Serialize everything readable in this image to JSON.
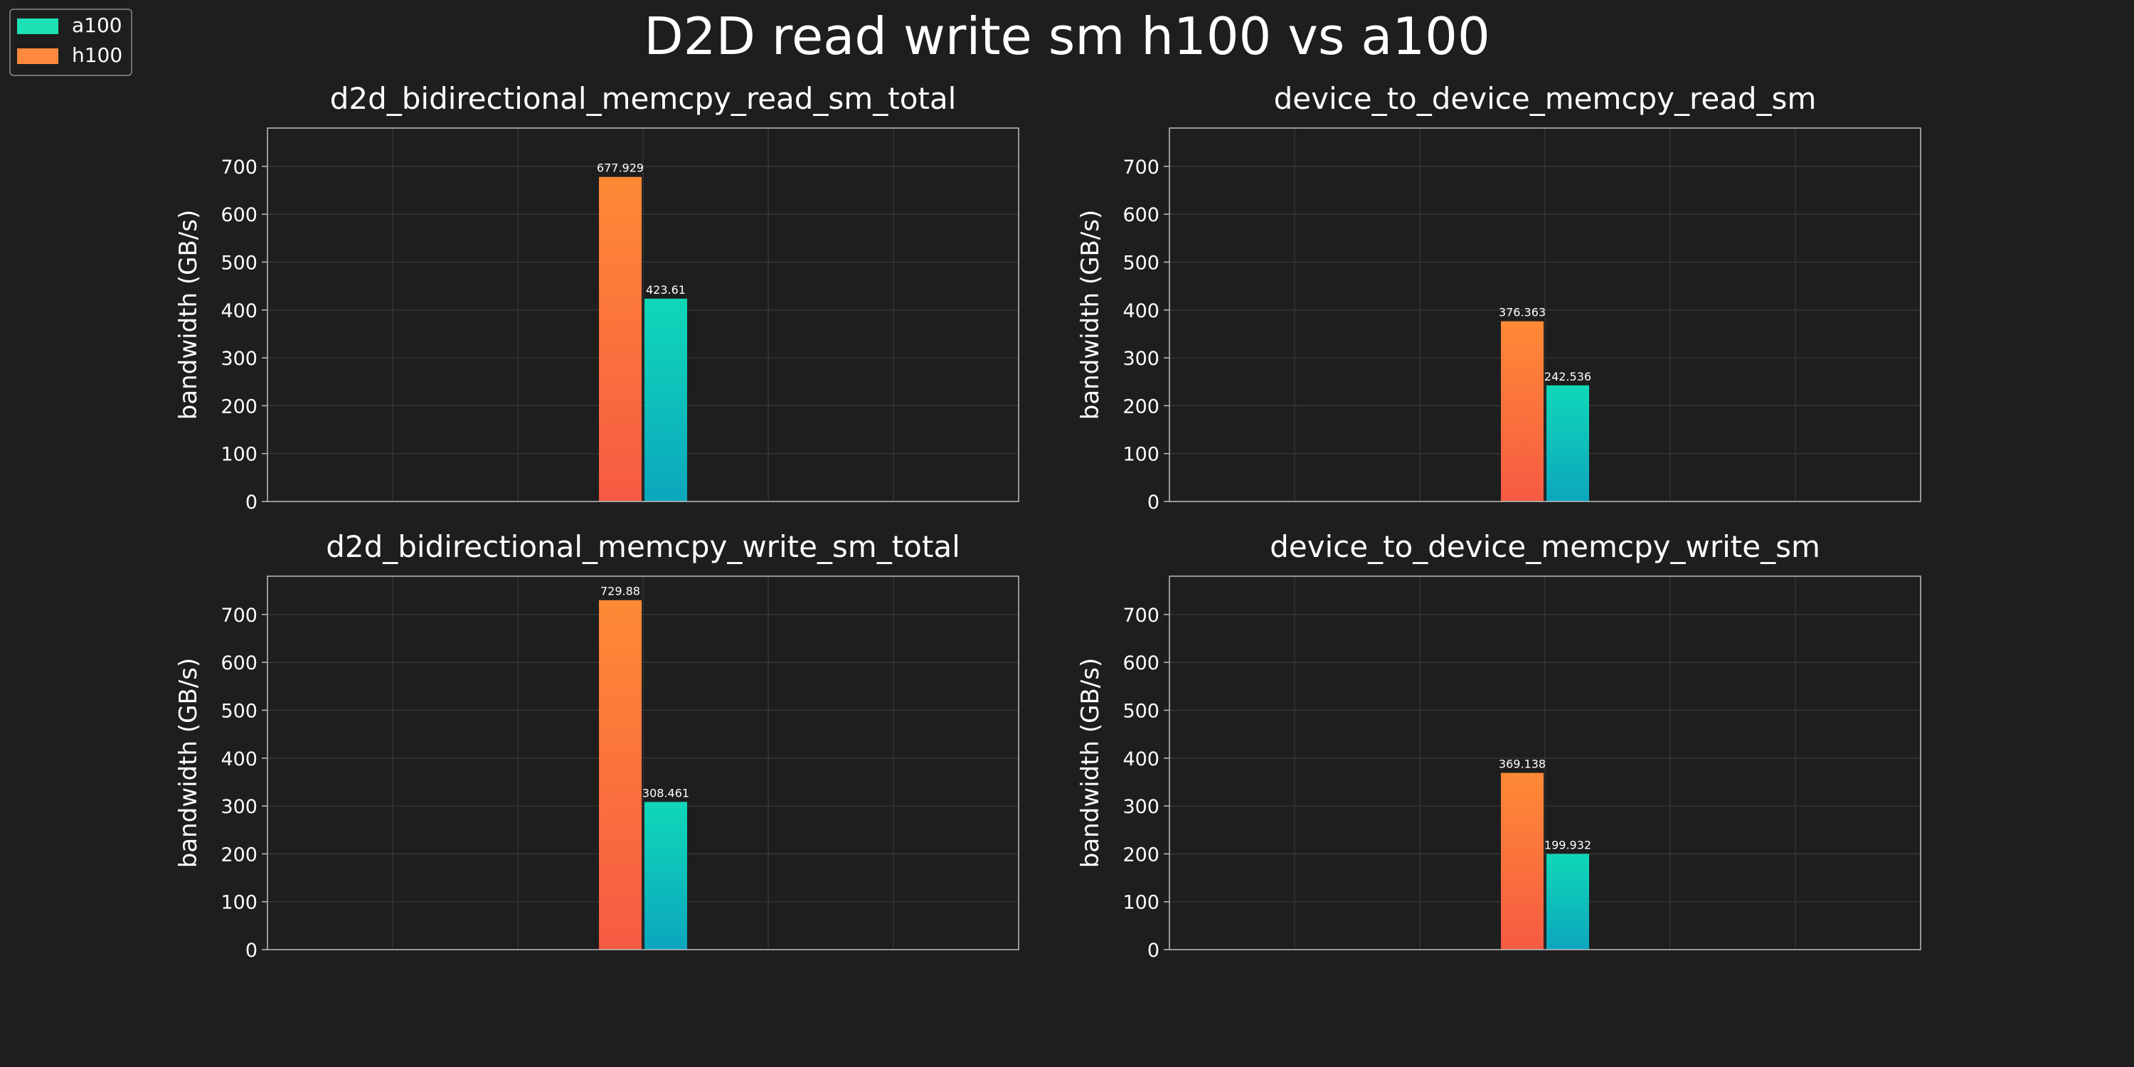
{
  "figure": {
    "title": "D2D read write sm h100 vs a100",
    "background": "#1e1e1e"
  },
  "legend": {
    "placement": "top-left",
    "entries": [
      {
        "name": "a100",
        "color": "#1de0b4"
      },
      {
        "name": "h100",
        "color": "#ff8a3d"
      }
    ]
  },
  "colors": {
    "h100_top": "#ff8a35",
    "h100_bottom": "#f65a43",
    "a100_top": "#0fd8b8",
    "a100_bottom": "#0ba6bd",
    "axes_edge": "#bfbfbf",
    "grid": "#3a3a3a"
  },
  "chart_data": [
    {
      "type": "bar",
      "title": "d2d_bidirectional_memcpy_read_sm_total",
      "ylabel": "bandwidth (GB/s)",
      "ylim": [
        0,
        780
      ],
      "yticks": [
        0,
        100,
        200,
        300,
        400,
        500,
        600,
        700
      ],
      "grid": true,
      "series": [
        {
          "name": "h100",
          "values": [
            677.929
          ],
          "labels": [
            "677.929"
          ]
        },
        {
          "name": "a100",
          "values": [
            423.61
          ],
          "labels": [
            "423.61"
          ]
        }
      ]
    },
    {
      "type": "bar",
      "title": "device_to_device_memcpy_read_sm",
      "ylabel": "bandwidth (GB/s)",
      "ylim": [
        0,
        780
      ],
      "yticks": [
        0,
        100,
        200,
        300,
        400,
        500,
        600,
        700
      ],
      "grid": true,
      "series": [
        {
          "name": "h100",
          "values": [
            376.363
          ],
          "labels": [
            "376.363"
          ]
        },
        {
          "name": "a100",
          "values": [
            242.536
          ],
          "labels": [
            "242.536"
          ]
        }
      ]
    },
    {
      "type": "bar",
      "title": "d2d_bidirectional_memcpy_write_sm_total",
      "ylabel": "bandwidth (GB/s)",
      "ylim": [
        0,
        780
      ],
      "yticks": [
        0,
        100,
        200,
        300,
        400,
        500,
        600,
        700
      ],
      "grid": true,
      "series": [
        {
          "name": "h100",
          "values": [
            729.88
          ],
          "labels": [
            "729.88"
          ]
        },
        {
          "name": "a100",
          "values": [
            308.461
          ],
          "labels": [
            "308.461"
          ]
        }
      ]
    },
    {
      "type": "bar",
      "title": "device_to_device_memcpy_write_sm",
      "ylabel": "bandwidth (GB/s)",
      "ylim": [
        0,
        780
      ],
      "yticks": [
        0,
        100,
        200,
        300,
        400,
        500,
        600,
        700
      ],
      "grid": true,
      "series": [
        {
          "name": "h100",
          "values": [
            369.138
          ],
          "labels": [
            "369.138"
          ]
        },
        {
          "name": "a100",
          "values": [
            199.932
          ],
          "labels": [
            "199.932"
          ]
        }
      ]
    }
  ]
}
